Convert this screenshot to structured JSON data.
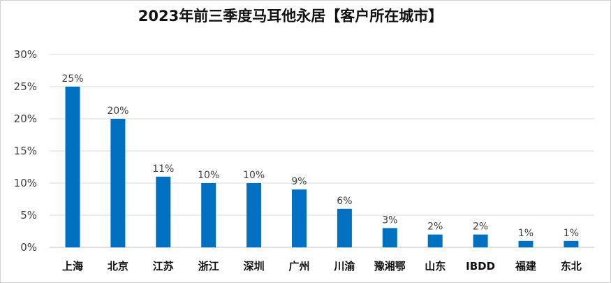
{
  "chart_data": {
    "type": "bar",
    "title": "2023年前三季度马耳他永居【客户所在城市】",
    "xlabel": "",
    "ylabel": "",
    "categories": [
      "上海",
      "北京",
      "江苏",
      "浙江",
      "深圳",
      "广州",
      "川渝",
      "豫湘鄂",
      "山东",
      "IBDD",
      "福建",
      "东北"
    ],
    "values": [
      25,
      20,
      11,
      10,
      10,
      9,
      6,
      3,
      2,
      2,
      1,
      1
    ],
    "value_labels": [
      "25%",
      "20%",
      "11%",
      "10%",
      "10%",
      "9%",
      "6%",
      "3%",
      "2%",
      "2%",
      "1%",
      "1%"
    ],
    "ylim": [
      0,
      30
    ],
    "yticks": [
      0,
      5,
      10,
      15,
      20,
      25,
      30
    ],
    "ytick_labels": [
      "0%",
      "5%",
      "10%",
      "15%",
      "20%",
      "25%",
      "30%"
    ],
    "grid": true,
    "legend": "none",
    "colors": {
      "bar": "#0070C0",
      "grid": "#d9d9d9",
      "axis": "#bfbfbf"
    }
  }
}
